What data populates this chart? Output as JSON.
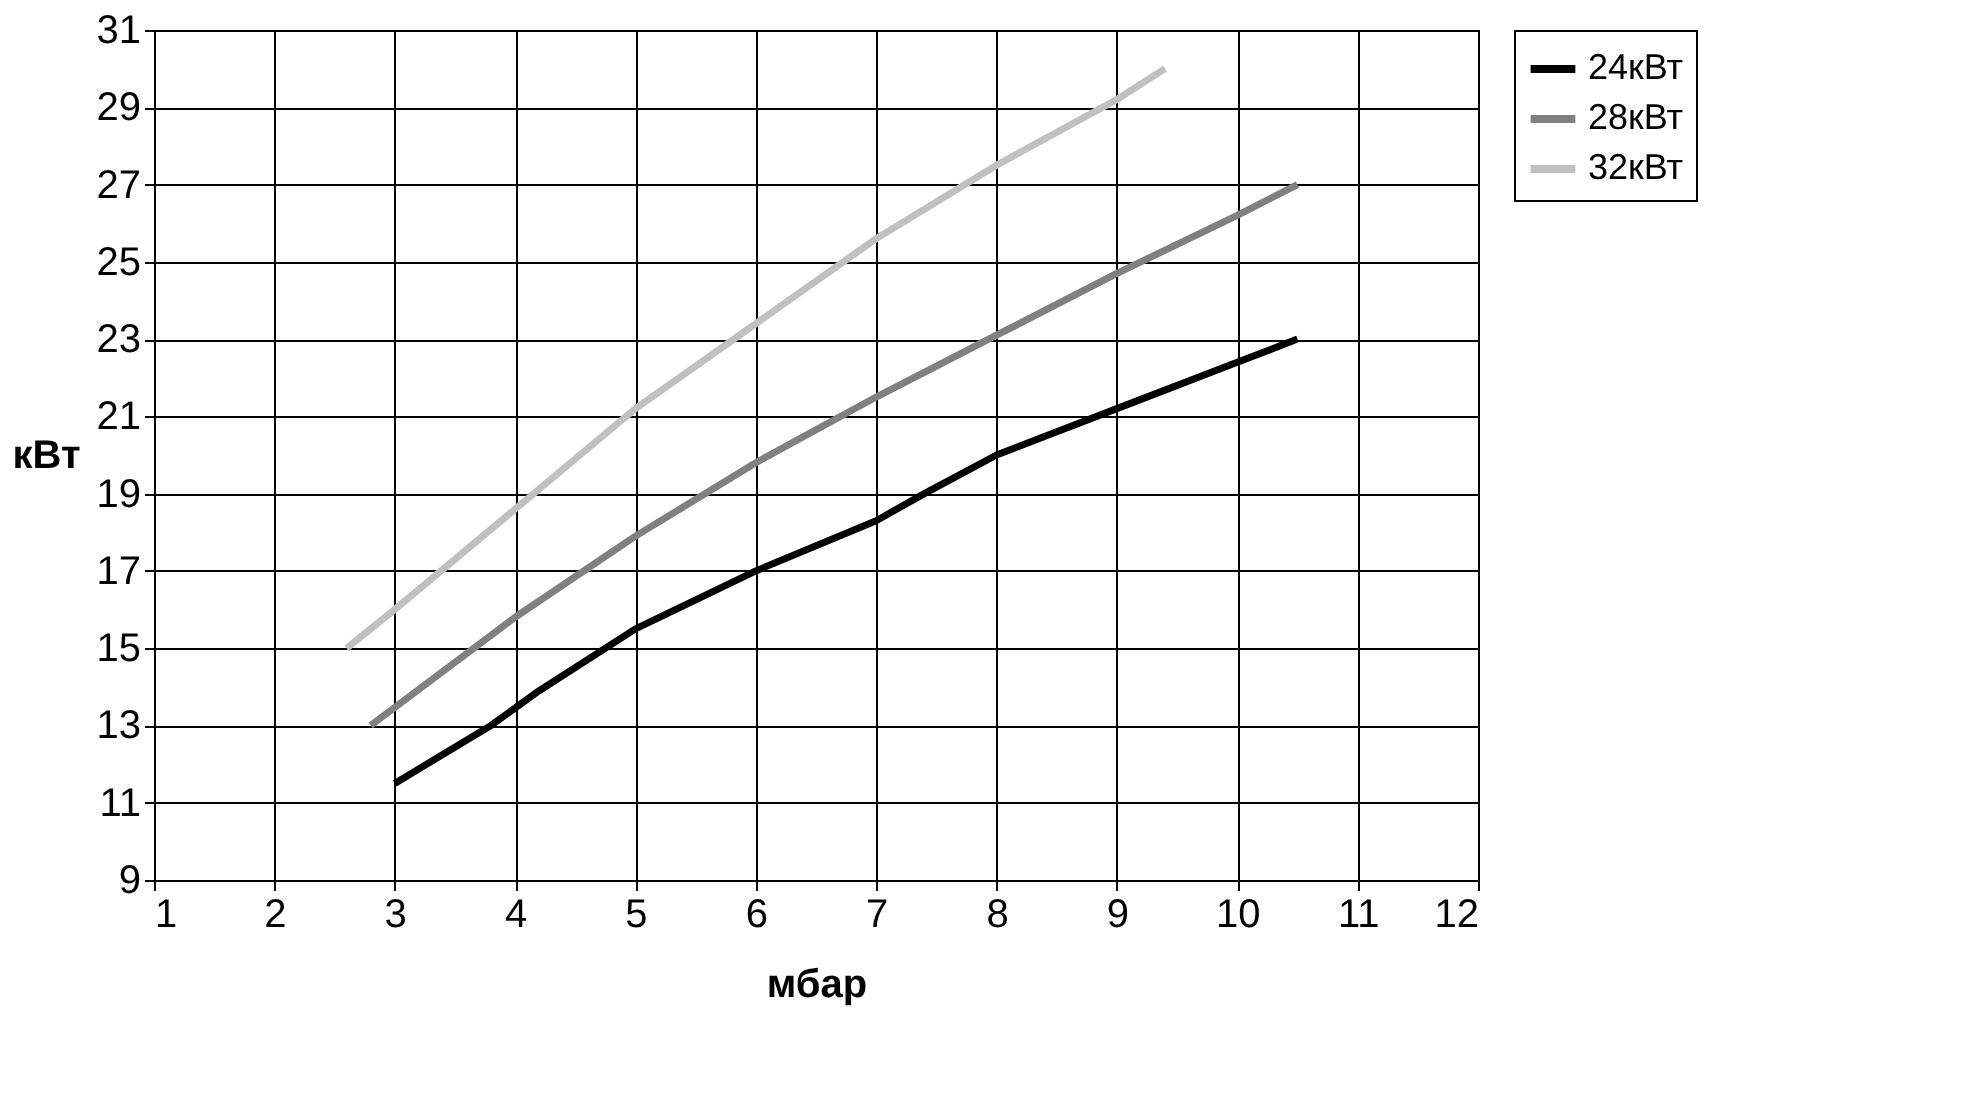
{
  "chart_data": {
    "type": "line",
    "xlabel": "мбар",
    "ylabel": "кВт",
    "xlim": [
      1,
      12
    ],
    "xticks": [
      1,
      2,
      3,
      4,
      5,
      6,
      7,
      8,
      9,
      10,
      11,
      12
    ],
    "ylim": [
      9,
      31
    ],
    "yticks": [
      9,
      11,
      13,
      15,
      17,
      19,
      21,
      23,
      25,
      27,
      29,
      31
    ],
    "grid": true,
    "legend": "right",
    "marker": "none",
    "line_style": "solid",
    "series": [
      {
        "name": "24кВт",
        "color": "#000000",
        "x": [
          3,
          3.8,
          4.2,
          5,
          5.6,
          6,
          7,
          7.4,
          8,
          8.5,
          9,
          10,
          10.5
        ],
        "values": [
          11.5,
          13,
          13.9,
          15.5,
          16.4,
          17,
          18.3,
          19,
          20,
          20.6,
          21.2,
          22.4,
          23
        ]
      },
      {
        "name": "28кВт",
        "color": "#808080",
        "x": [
          2.8,
          4,
          5,
          6,
          7,
          8,
          9,
          10,
          10.5
        ],
        "values": [
          13,
          15.8,
          17.9,
          19.8,
          21.5,
          23.1,
          24.7,
          26.2,
          27
        ]
      },
      {
        "name": "32кВт",
        "color": "#c0c0c0",
        "x": [
          2.6,
          3,
          4,
          5,
          6,
          7,
          8,
          9,
          9.4
        ],
        "values": [
          15,
          16,
          18.6,
          21.2,
          23.4,
          25.6,
          27.5,
          29.2,
          30
        ]
      }
    ]
  }
}
